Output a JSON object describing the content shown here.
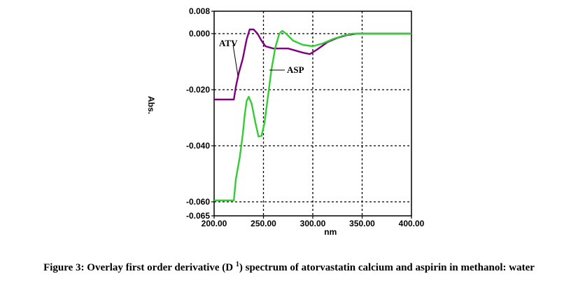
{
  "chart_data": {
    "type": "line",
    "xlabel": "nm",
    "ylabel": "Abs.",
    "xlim": [
      200,
      400
    ],
    "ylim": [
      -0.065,
      0.008
    ],
    "x_ticks": [
      {
        "value": 200,
        "label": "200.00"
      },
      {
        "value": 250,
        "label": "250.00"
      },
      {
        "value": 300,
        "label": "300.00"
      },
      {
        "value": 350,
        "label": "350.00"
      },
      {
        "value": 400,
        "label": "400.00"
      }
    ],
    "y_ticks": [
      {
        "value": 0.008,
        "label": "0.008"
      },
      {
        "value": 0.0,
        "label": "0.000"
      },
      {
        "value": -0.02,
        "label": "-0.020"
      },
      {
        "value": -0.04,
        "label": "-0.040"
      },
      {
        "value": -0.06,
        "label": "-0.060"
      },
      {
        "value": -0.065,
        "label": "-0.065"
      }
    ],
    "grid": true,
    "series": [
      {
        "name": "ATV",
        "color": "#800080",
        "points": [
          [
            200,
            -0.0235
          ],
          [
            220,
            -0.0235
          ],
          [
            222,
            -0.019
          ],
          [
            225,
            -0.014
          ],
          [
            229,
            -0.009
          ],
          [
            233,
            -0.002
          ],
          [
            236,
            0.0015
          ],
          [
            240,
            0.0015
          ],
          [
            244,
            0.0
          ],
          [
            248,
            -0.0025
          ],
          [
            252,
            -0.0045
          ],
          [
            260,
            -0.0053
          ],
          [
            275,
            -0.0053
          ],
          [
            290,
            -0.0068
          ],
          [
            297,
            -0.0073
          ],
          [
            305,
            -0.0055
          ],
          [
            315,
            -0.003
          ],
          [
            325,
            -0.0015
          ],
          [
            335,
            -0.0005
          ],
          [
            345,
            0.0
          ],
          [
            400,
            0.0
          ]
        ]
      },
      {
        "name": "ASP",
        "color": "#33cc33",
        "points": [
          [
            200,
            -0.0595
          ],
          [
            220,
            -0.0595
          ],
          [
            222,
            -0.052
          ],
          [
            226,
            -0.044
          ],
          [
            229,
            -0.036
          ],
          [
            231,
            -0.029
          ],
          [
            233,
            -0.024
          ],
          [
            235,
            -0.0225
          ],
          [
            238,
            -0.025
          ],
          [
            242,
            -0.032
          ],
          [
            245,
            -0.0367
          ],
          [
            248,
            -0.0365
          ],
          [
            251,
            -0.032
          ],
          [
            254,
            -0.024
          ],
          [
            258,
            -0.013
          ],
          [
            262,
            -0.005
          ],
          [
            266,
            0.0
          ],
          [
            269,
            0.001
          ],
          [
            273,
            0.0
          ],
          [
            280,
            -0.0025
          ],
          [
            290,
            -0.004
          ],
          [
            300,
            -0.0045
          ],
          [
            310,
            -0.0035
          ],
          [
            320,
            -0.002
          ],
          [
            330,
            -0.0008
          ],
          [
            340,
            0.0
          ],
          [
            400,
            0.0
          ]
        ]
      }
    ]
  },
  "caption": {
    "text_before": "Figure 3: Overlay first order derivative (D ",
    "superscript": "1",
    "text_after": ") spectrum of atorvastatin calcium and aspirin in methanol: water"
  }
}
